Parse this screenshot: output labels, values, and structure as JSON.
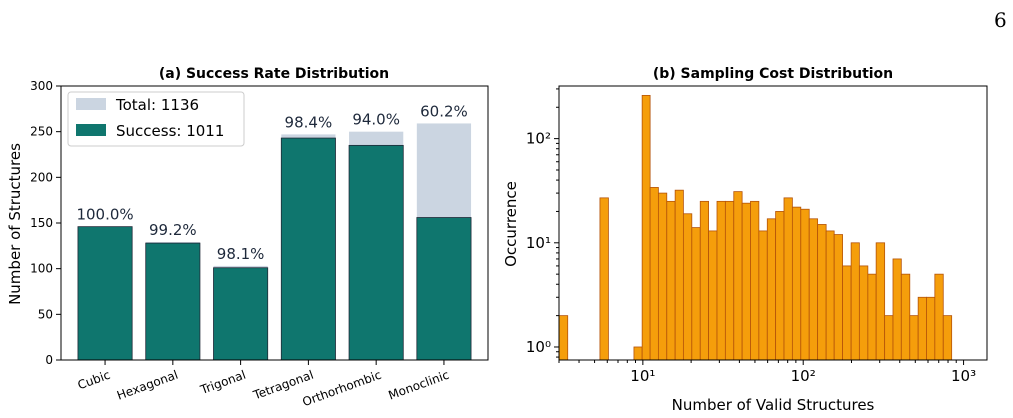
{
  "page_number": "6",
  "colors": {
    "total": "#cbd5e1",
    "success": "#0f766e",
    "hist_fill": "#f59e0b",
    "hist_edge": "#b45309"
  },
  "chart_data": [
    {
      "type": "bar",
      "title": "(a) Success Rate Distribution",
      "xlabel": "",
      "ylabel": "Number of Structures",
      "ylim": [
        0,
        300
      ],
      "yticks": [
        0,
        50,
        100,
        150,
        200,
        250,
        300
      ],
      "grid": false,
      "legend_position": "top-left",
      "categories": [
        "Cubic",
        "Hexagonal",
        "Trigonal",
        "Tetragonal",
        "Orthorhombic",
        "Monoclinic"
      ],
      "series": [
        {
          "name": "Total: 1136",
          "values": [
            146,
            129,
            103,
            247,
            250,
            259
          ]
        },
        {
          "name": "Success: 1011",
          "values": [
            146,
            128,
            101,
            243,
            235,
            156
          ]
        }
      ],
      "data_labels": [
        "100.0%",
        "99.2%",
        "98.1%",
        "98.4%",
        "94.0%",
        "60.2%"
      ]
    },
    {
      "type": "bar",
      "title": "(b) Sampling Cost Distribution",
      "xlabel": "Number of Valid Structures",
      "ylabel": "Occurrence",
      "xscale": "log",
      "yscale": "log",
      "xlim": [
        3,
        1400
      ],
      "ylim": [
        0.75,
        320
      ],
      "xticks": [
        {
          "value": 10,
          "label": "10¹"
        },
        {
          "value": 100,
          "label": "10²"
        },
        {
          "value": 1000,
          "label": "10³"
        }
      ],
      "yticks": [
        {
          "value": 1,
          "label": "10⁰"
        },
        {
          "value": 10,
          "label": "10¹"
        },
        {
          "value": 100,
          "label": "10²"
        }
      ],
      "grid": false,
      "bin_edges": [
        3.0,
        3.4,
        3.8,
        4.3,
        4.8,
        5.4,
        6.1,
        6.9,
        7.8,
        8.8,
        9.9,
        11.1,
        12.5,
        14.1,
        15.9,
        17.9,
        20.2,
        22.8,
        25.7,
        29.0,
        32.7,
        36.9,
        41.6,
        46.9,
        52.9,
        59.7,
        67.3,
        75.9,
        85.6,
        96.6,
        109,
        123,
        139,
        156,
        176,
        199,
        224,
        253,
        285,
        322,
        363,
        409,
        462,
        521,
        587,
        662,
        747,
        843
      ],
      "counts": [
        2,
        0,
        0,
        0,
        0,
        27,
        0,
        0,
        0,
        1,
        260,
        34,
        30,
        25,
        32,
        19,
        14,
        25,
        13,
        25,
        25,
        31,
        24,
        25,
        13,
        17,
        20,
        27,
        22,
        21,
        17,
        15,
        13,
        12,
        6,
        10,
        6,
        5,
        10,
        2,
        7,
        5,
        2,
        3,
        3,
        5,
        2
      ]
    }
  ]
}
